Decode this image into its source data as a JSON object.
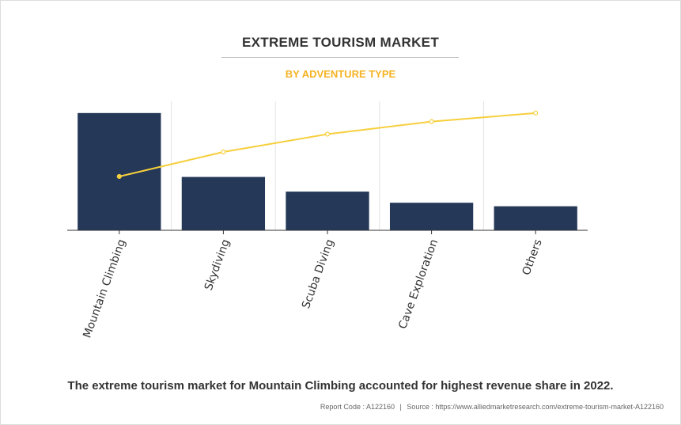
{
  "header": {
    "title": "EXTREME TOURISM MARKET",
    "subtitle": "BY ADVENTURE TYPE"
  },
  "caption": "The extreme tourism market for Mountain Climbing accounted for highest revenue share in 2022.",
  "footer": {
    "report_code": "Report Code : A122160",
    "separator": "|",
    "source": "Source : https://www.alliedmarketresearch.com/extreme-tourism-market-A122160"
  },
  "colors": {
    "bar": "#253858",
    "line": "#f7cf3d",
    "title": "#333333",
    "subtitle": "#f5b324",
    "grid": "#e3e3e3",
    "axis": "#333333"
  },
  "chart_data": {
    "type": "bar",
    "categories": [
      "Mountain Climbing",
      "Skydiving",
      "Scuba Diving",
      "Cave Exploration",
      "Others"
    ],
    "series": [
      {
        "type": "bar",
        "values": [
          100,
          45.5,
          33,
          23.5,
          20.5
        ]
      },
      {
        "type": "line",
        "values": [
          45.9,
          66.8,
          82,
          92.7,
          100
        ]
      }
    ],
    "ylim": [
      0,
      110
    ],
    "grid": "vertical",
    "tick_rotation": -70
  }
}
